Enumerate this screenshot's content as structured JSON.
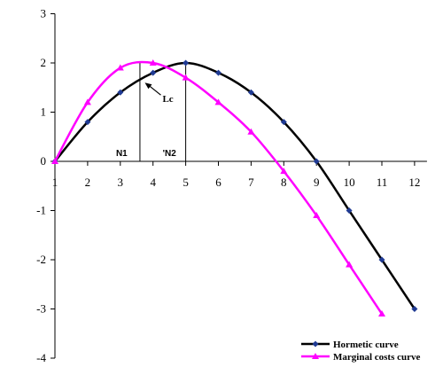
{
  "chart_data": {
    "type": "line",
    "title": "",
    "xlabel": "",
    "ylabel": "",
    "xlim": [
      1,
      12
    ],
    "ylim": [
      -4,
      3
    ],
    "x_ticks": [
      "1",
      "2",
      "3",
      "4",
      "5",
      "6",
      "7",
      "8",
      "9",
      "10",
      "11",
      "12"
    ],
    "y_ticks": [
      "3",
      "2",
      "1",
      "0",
      "-1",
      "-2",
      "-3",
      "-4"
    ],
    "grid": false,
    "legend_position": "bottom-right",
    "series": [
      {
        "name": "Hormetic curve",
        "color": "#000000",
        "marker": "diamond",
        "marker_color": "#1f3a93",
        "x": [
          1,
          2,
          3,
          4,
          5,
          6,
          7,
          8,
          9,
          10,
          11,
          12
        ],
        "values": [
          0,
          0.8,
          1.4,
          1.8,
          2.0,
          1.8,
          1.4,
          0.8,
          0,
          -1,
          -2,
          -3
        ]
      },
      {
        "name": "Marginal costs curve",
        "color": "#ff00ff",
        "marker": "triangle",
        "marker_color": "#ff00ff",
        "x": [
          1,
          2,
          3,
          4,
          5,
          6,
          7,
          8,
          9,
          10,
          11
        ],
        "values": [
          0,
          1.2,
          1.9,
          2.0,
          1.7,
          1.2,
          0.6,
          -0.2,
          -1.1,
          -2.1,
          -3.1
        ]
      }
    ],
    "annotations": [
      {
        "label": "N1",
        "x": 3.6
      },
      {
        "label": "'N2",
        "x": 5
      },
      {
        "label": "Lc",
        "x": 3.75,
        "y": 1.6
      }
    ]
  }
}
